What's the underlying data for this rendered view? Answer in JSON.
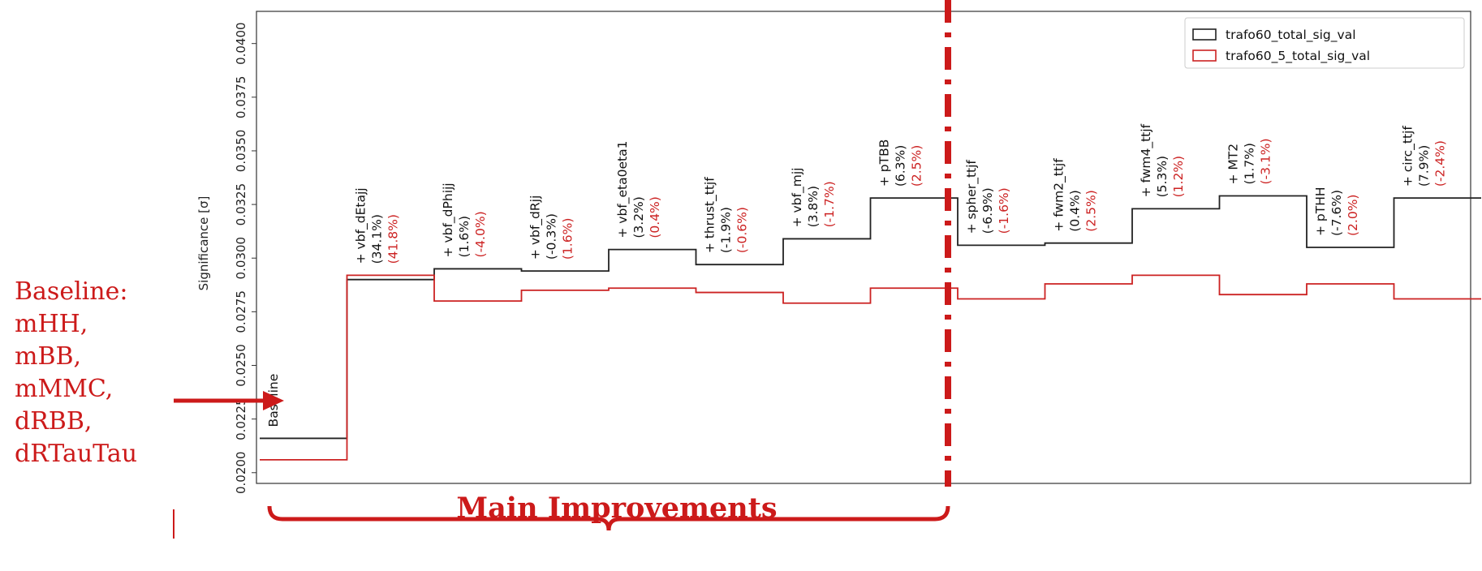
{
  "chart_data": {
    "type": "line",
    "ylabel": "Significance [σ]",
    "xlabel": "",
    "ylim": [
      0.0195,
      0.0415
    ],
    "yticks": [
      "0.0200",
      "0.0225",
      "0.0250",
      "0.0275",
      "0.0300",
      "0.0325",
      "0.0350",
      "0.0375",
      "0.0400"
    ],
    "steps": [
      {
        "label": "Baseline",
        "pct_black": "",
        "pct_red": ""
      },
      {
        "label": "+ vbf_dEtajj",
        "pct_black": "(34.1%)",
        "pct_red": "(41.8%)"
      },
      {
        "label": "+ vbf_dPhijj",
        "pct_black": "(1.6%)",
        "pct_red": "(-4.0%)"
      },
      {
        "label": "+ vbf_dRjj",
        "pct_black": "(-0.3%)",
        "pct_red": "(1.6%)"
      },
      {
        "label": "+ vbf_eta0eta1",
        "pct_black": "(3.2%)",
        "pct_red": "(0.4%)"
      },
      {
        "label": "+ thrust_ttjf",
        "pct_black": "(-1.9%)",
        "pct_red": "(-0.6%)"
      },
      {
        "label": "+ vbf_mjj",
        "pct_black": "(3.8%)",
        "pct_red": "(-1.7%)"
      },
      {
        "label": "+ pTBB",
        "pct_black": "(6.3%)",
        "pct_red": "(2.5%)"
      },
      {
        "label": "+ spher_ttjf",
        "pct_black": "(-6.9%)",
        "pct_red": "(-1.6%)"
      },
      {
        "label": "+ fwm2_ttjf",
        "pct_black": "(0.4%)",
        "pct_red": "(2.5%)"
      },
      {
        "label": "+ fwm4_ttjf",
        "pct_black": "(5.3%)",
        "pct_red": "(1.2%)"
      },
      {
        "label": "+ MT2",
        "pct_black": "(1.7%)",
        "pct_red": "(-3.1%)"
      },
      {
        "label": "+ pTHH",
        "pct_black": "(-7.6%)",
        "pct_red": "(2.0%)"
      },
      {
        "label": "+ circ_ttjf",
        "pct_black": "(7.9%)",
        "pct_red": "(-2.4%)"
      }
    ],
    "series": [
      {
        "name": "trafo60_total_sig_val",
        "color": "#222222",
        "values": [
          0.0216,
          0.029,
          0.0295,
          0.0294,
          0.0304,
          0.0297,
          0.0309,
          0.0328,
          0.0306,
          0.0307,
          0.0323,
          0.0329,
          0.0305,
          0.0328
        ]
      },
      {
        "name": "trafo60_5_total_sig_val",
        "color": "#cc2222",
        "values": [
          0.0206,
          0.0292,
          0.028,
          0.0285,
          0.0286,
          0.0284,
          0.0279,
          0.0286,
          0.0281,
          0.0288,
          0.0292,
          0.0283,
          0.0288,
          0.0281
        ]
      }
    ],
    "legend_position": "top-right",
    "grid": false
  },
  "annotations": {
    "baseline_note": [
      "Baseline:",
      "mHH,",
      "mBB,",
      "mMMC,",
      "dRBB,",
      "dRTauTau"
    ],
    "bracket_label": "Main Improvements",
    "accent_color": "#cc1a1a"
  }
}
